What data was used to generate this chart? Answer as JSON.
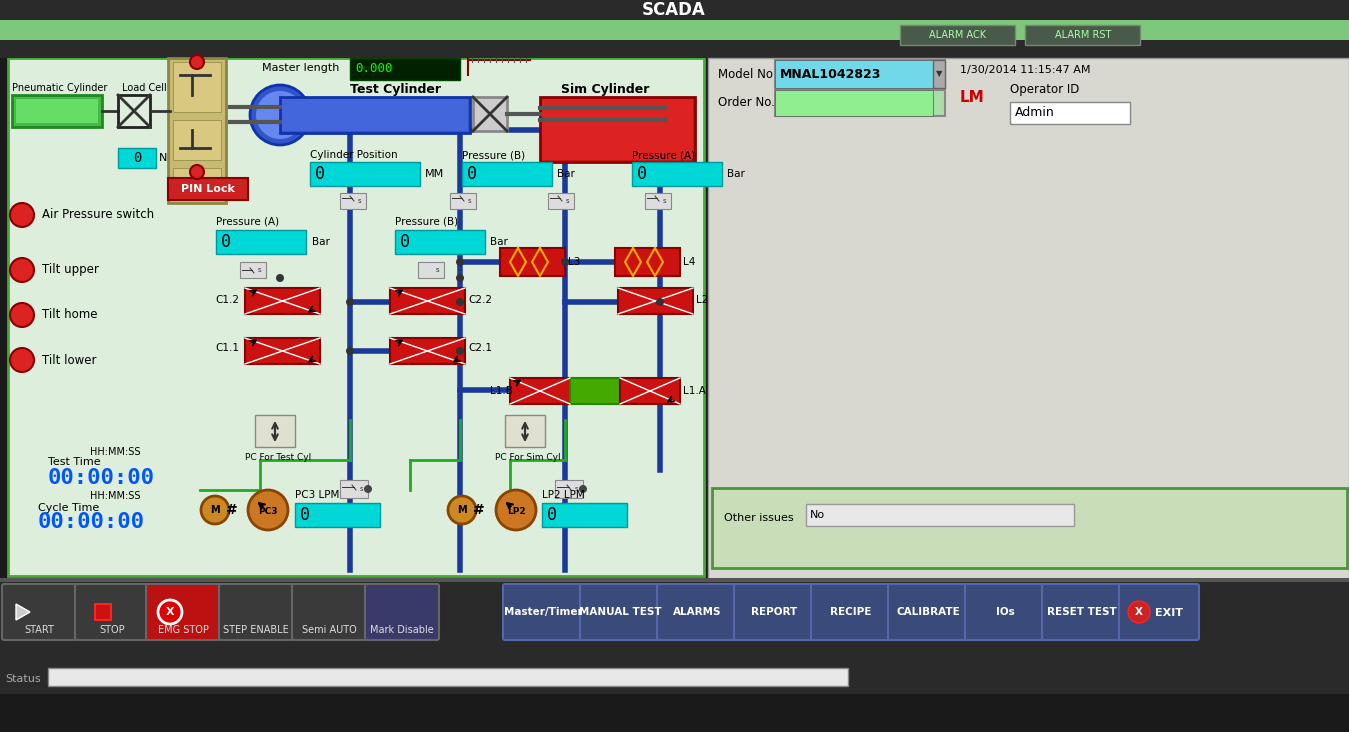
{
  "title": "SCADA",
  "model_no": "MNAL1042823",
  "datetime": "1/30/2014 11:15:47 AM",
  "operator_id": "Admin",
  "bg_dark": "#1a1a1a",
  "bg_green": "#90c87a",
  "panel_gray": "#c0c0b8",
  "cyan_field": "#00e8e8",
  "light_green_field": "#90ee90",
  "blue_pipe": "#1a3a9a",
  "green_pipe": "#22aa22",
  "red_valve": "#cc1111",
  "green_valve_center": "#44aa00",
  "blue_cylinder": "#3355cc",
  "red_cylinder": "#cc1111",
  "green_cylinder": "#44bb44",
  "btn_dark": "#444444",
  "btn_blue": "#4466bb",
  "btn_red_emg": "#cc2222",
  "status_bar_bg": "#555555",
  "bottom_buttons_left": [
    "START",
    "STOP",
    "EMG STOP",
    "STEP ENABLE",
    "Semi AUTO",
    "Mark Disable"
  ],
  "bottom_buttons_right": [
    "Master/Timer",
    "MANUAL TEST",
    "ALARMS",
    "REPORT",
    "RECIPE",
    "CALIBRATE",
    "IOs",
    "RESET TEST",
    "EXIT"
  ]
}
